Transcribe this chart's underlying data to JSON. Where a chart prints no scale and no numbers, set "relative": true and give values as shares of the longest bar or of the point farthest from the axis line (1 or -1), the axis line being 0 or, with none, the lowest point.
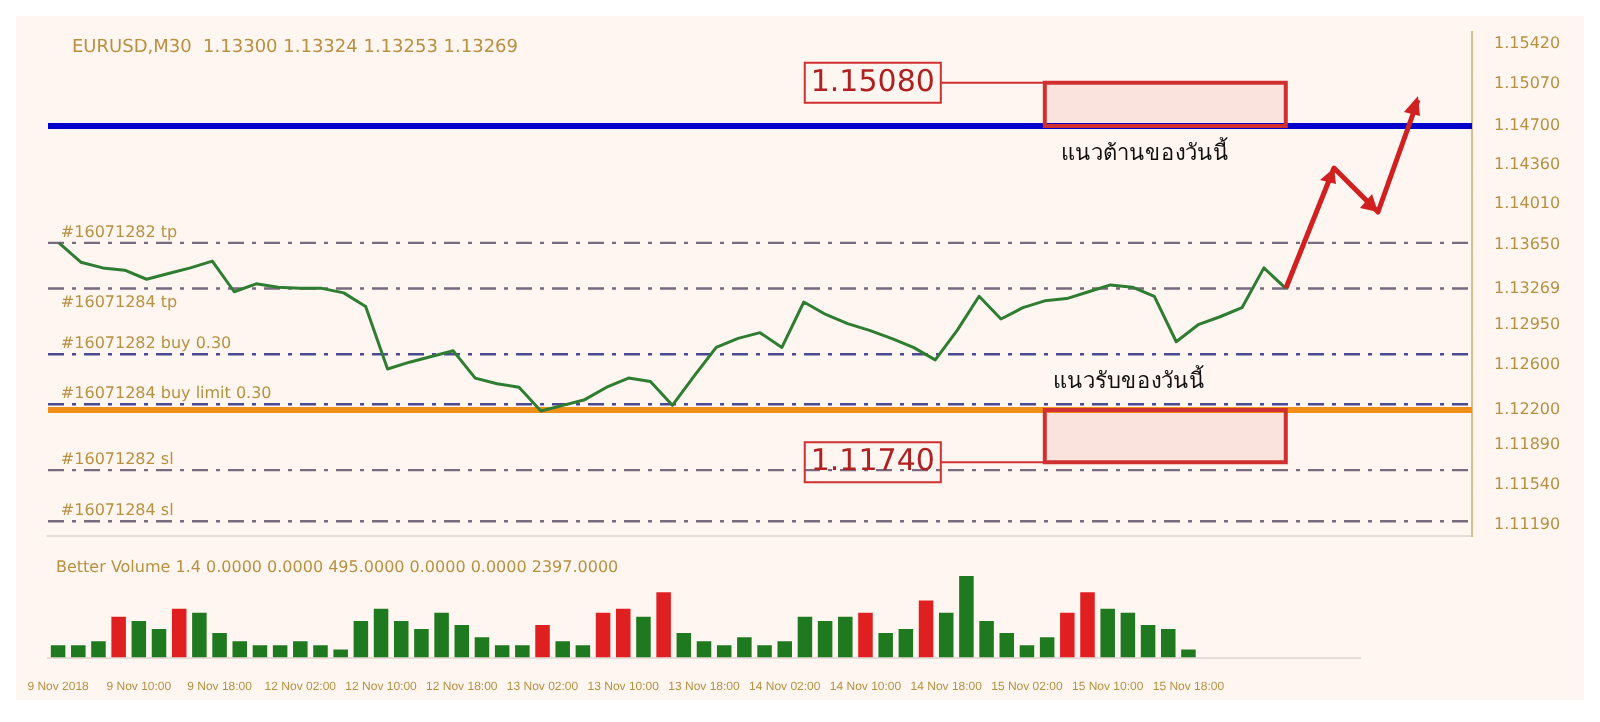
{
  "chart_data": [
    {
      "type": "line",
      "title": "EURUSD,M30  1.13300 1.13324 1.13253 1.13269",
      "categories": [
        null,
        null,
        null,
        null,
        null,
        null,
        null,
        null,
        null,
        null,
        null,
        null,
        null,
        null,
        null,
        null,
        null,
        null,
        null,
        null,
        null,
        null,
        null,
        null,
        null,
        null,
        null,
        null,
        null,
        null,
        null,
        null,
        null,
        null,
        null,
        null,
        null,
        null,
        null,
        null,
        null,
        null,
        null,
        null,
        null,
        null,
        null,
        null,
        null,
        null,
        null,
        null,
        null,
        null,
        null,
        null,
        null,
        null,
        null,
        null,
        null,
        null,
        null,
        null,
        null
      ],
      "series": [
        {
          "color": "#2e7d32",
          "values": [
            1.1367,
            1.135,
            1.1345,
            1.1343,
            1.1335,
            1.134,
            1.1345,
            1.1351,
            1.1324,
            1.1331,
            1.1328,
            1.1327,
            1.1327,
            1.1323,
            1.1311,
            1.1256,
            1.1262,
            1.1267,
            1.1272,
            1.1248,
            1.1243,
            1.124,
            1.1219,
            1.1224,
            1.1229,
            1.124,
            1.1248,
            1.1245,
            1.1224,
            1.125,
            1.1275,
            1.1283,
            1.1288,
            1.1275,
            1.1315,
            1.1304,
            1.1296,
            1.129,
            1.1283,
            1.1275,
            1.1264,
            1.129,
            1.132,
            1.13,
            1.131,
            1.1316,
            1.1318,
            1.1324,
            1.133,
            1.1328,
            1.132,
            1.128,
            1.1295,
            1.1302,
            1.131,
            1.1345,
            1.1327,
            null,
            null,
            null,
            null,
            null,
            null,
            null,
            null
          ]
        }
      ],
      "ylim": [
        1.1109,
        1.1553
      ],
      "yticks": [
        {
          "value": 1.1119,
          "label": "1.11190"
        },
        {
          "value": 1.1154,
          "label": "1.11540"
        },
        {
          "value": 1.1189,
          "label": "1.11890"
        },
        {
          "value": 1.122,
          "label": "1.12200"
        },
        {
          "value": 1.126,
          "label": "1.12600"
        },
        {
          "value": 1.1295,
          "label": "1.12950"
        },
        {
          "value": 1.13269,
          "label": "1.13269"
        },
        {
          "value": 1.1365,
          "label": "1.13650"
        },
        {
          "value": 1.1401,
          "label": "1.14010"
        },
        {
          "value": 1.1436,
          "label": "1.14360"
        },
        {
          "value": 1.147,
          "label": "1.14700"
        },
        {
          "value": 1.1507,
          "label": "1.15070"
        },
        {
          "value": 1.1542,
          "label": "1.15420"
        }
      ],
      "ref_lines": [
        {
          "axis": "y",
          "value": 1.147,
          "label": null,
          "color": "#0000cc",
          "line_style": "solid"
        },
        {
          "axis": "y",
          "value": 1.122,
          "label": null,
          "color": "#f0901a",
          "line_style": "solid"
        },
        {
          "axis": "y",
          "value": 1.1367,
          "label": "#16071282 tp",
          "color": "#7a6a80",
          "line_style": "dashed"
        },
        {
          "axis": "y",
          "value": 1.13269,
          "label": "#16071284 tp",
          "color": "#7a6a80",
          "line_style": "dashed"
        },
        {
          "axis": "y",
          "value": 1.1269,
          "label": "#16071282 buy 0.30",
          "color": "#4a4a90",
          "line_style": "dashed"
        },
        {
          "axis": "y",
          "value": 1.1225,
          "label": "#16071284 buy limit 0.30",
          "color": "#4a4a90",
          "line_style": "dashed"
        },
        {
          "axis": "y",
          "value": 1.1167,
          "label": "#16071282 sl",
          "color": "#7a6a80",
          "line_style": "dashed"
        },
        {
          "axis": "y",
          "value": 1.1122,
          "label": "#16071284 sl",
          "color": "#7a6a80",
          "line_style": "dashed"
        }
      ],
      "bands": [
        {
          "axis": "y",
          "from": 1.147,
          "to": 1.1508,
          "label": "1.15080",
          "color": "#d03030"
        },
        {
          "axis": "y",
          "from": 1.1174,
          "to": 1.122,
          "label": "1.11740",
          "color": "#d03030"
        }
      ],
      "annotations": [
        "แนวต้านของวันนี้",
        "แนวรับของวันนี้"
      ],
      "grid": false,
      "legend": false,
      "marker": "none",
      "tick_labels": "y"
    },
    {
      "type": "bar",
      "title": "Better Volume 1.4 0.0000 0.0000 495.0000 0.0000 0.0000 2397.0000",
      "relative": true,
      "categories": [
        "9 Nov 2018",
        null,
        null,
        null,
        "9 Nov 10:00",
        null,
        null,
        null,
        "9 Nov 18:00",
        null,
        null,
        null,
        "12 Nov 02:00",
        null,
        null,
        null,
        "12 Nov 10:00",
        null,
        null,
        null,
        "12 Nov 18:00",
        null,
        null,
        null,
        "13 Nov 02:00",
        null,
        null,
        null,
        "13 Nov 10:00",
        null,
        null,
        null,
        "13 Nov 18:00",
        null,
        null,
        null,
        "14 Nov 02:00",
        null,
        null,
        null,
        "14 Nov 10:00",
        null,
        null,
        null,
        "14 Nov 18:00",
        null,
        null,
        null,
        "15 Nov 02:00",
        null,
        null,
        null,
        "15 Nov 10:00",
        null,
        null,
        null,
        "15 Nov 18:00",
        null,
        null,
        null,
        null,
        null,
        null,
        null,
        null
      ],
      "values": [
        0.15,
        0.15,
        0.2,
        0.5,
        0.45,
        0.35,
        0.6,
        0.55,
        0.3,
        0.2,
        0.15,
        0.15,
        0.2,
        0.15,
        0.1,
        0.45,
        0.6,
        0.45,
        0.35,
        0.55,
        0.4,
        0.25,
        0.15,
        0.15,
        0.4,
        0.2,
        0.15,
        0.55,
        0.6,
        0.5,
        0.8,
        0.3,
        0.2,
        0.15,
        0.25,
        0.15,
        0.2,
        0.5,
        0.45,
        0.5,
        0.55,
        0.3,
        0.35,
        0.7,
        0.55,
        1,
        0.45,
        0.3,
        0.15,
        0.25,
        0.55,
        0.8,
        0.6,
        0.55,
        0.4,
        0.35,
        0.1,
        null,
        null,
        null,
        null,
        null,
        null,
        null,
        null
      ],
      "colors": [
        "#1f7a1f",
        "#1f7a1f",
        "#1f7a1f",
        "#e02020",
        "#1f7a1f",
        "#1f7a1f",
        "#e02020",
        "#1f7a1f",
        "#1f7a1f",
        "#1f7a1f",
        "#1f7a1f",
        "#1f7a1f",
        "#1f7a1f",
        "#1f7a1f",
        "#1f7a1f",
        "#1f7a1f",
        "#1f7a1f",
        "#1f7a1f",
        "#1f7a1f",
        "#1f7a1f",
        "#1f7a1f",
        "#1f7a1f",
        "#1f7a1f",
        "#1f7a1f",
        "#e02020",
        "#1f7a1f",
        "#1f7a1f",
        "#e02020",
        "#e02020",
        "#1f7a1f",
        "#e02020",
        "#1f7a1f",
        "#1f7a1f",
        "#1f7a1f",
        "#1f7a1f",
        "#1f7a1f",
        "#1f7a1f",
        "#1f7a1f",
        "#1f7a1f",
        "#1f7a1f",
        "#e02020",
        "#1f7a1f",
        "#1f7a1f",
        "#e02020",
        "#1f7a1f",
        "#1f7a1f",
        "#1f7a1f",
        "#1f7a1f",
        "#1f7a1f",
        "#1f7a1f",
        "#e02020",
        "#e02020",
        "#1f7a1f",
        "#1f7a1f",
        "#1f7a1f",
        "#1f7a1f",
        "#1f7a1f",
        "#1f7a1f",
        "#1f7a1f",
        "#1f7a1f",
        "#1f7a1f",
        "#1f7a1f",
        "#1f7a1f",
        "#1f7a1f",
        "#1f7a1f"
      ],
      "grid": false,
      "legend": false,
      "tick_labels": "x"
    }
  ]
}
